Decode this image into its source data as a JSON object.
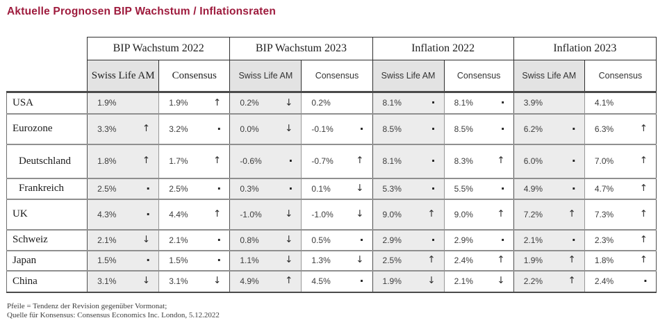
{
  "title": "Aktuelle Prognosen BIP Wachstum / Inflationsraten",
  "colors": {
    "title_red": "#9e1b3d",
    "header_gray": "#e3e3e3",
    "cell_gray": "#ececec"
  },
  "legend": {
    "up_arrow": "↑",
    "down_arrow": "↓",
    "unchanged_dot": "·"
  },
  "table": {
    "groups": [
      {
        "label": "BIP Wachstum 2022"
      },
      {
        "label": "BIP Wachstum 2023"
      },
      {
        "label": "Inflation 2022"
      },
      {
        "label": "Inflation 2023"
      }
    ],
    "subheaders": {
      "swiss_life": "Swiss Life AM",
      "consensus": "Consensus"
    },
    "rows": [
      {
        "country": "USA",
        "indent": false,
        "cells": [
          {
            "value": "1.9%",
            "trend": "none"
          },
          {
            "value": "1.9%",
            "trend": "up"
          },
          {
            "value": "0.2%",
            "trend": "down"
          },
          {
            "value": "0.2%",
            "trend": "none"
          },
          {
            "value": "8.1%",
            "trend": "dot"
          },
          {
            "value": "8.1%",
            "trend": "dot"
          },
          {
            "value": "3.9%",
            "trend": "none"
          },
          {
            "value": "4.1%",
            "trend": "none"
          }
        ]
      },
      {
        "country": "Eurozone",
        "indent": false,
        "cells": [
          {
            "value": "3.3%",
            "trend": "up"
          },
          {
            "value": "3.2%",
            "trend": "dot"
          },
          {
            "value": "0.0%",
            "trend": "down"
          },
          {
            "value": "-0.1%",
            "trend": "dot"
          },
          {
            "value": "8.5%",
            "trend": "dot"
          },
          {
            "value": "8.5%",
            "trend": "dot"
          },
          {
            "value": "6.2%",
            "trend": "dot"
          },
          {
            "value": "6.3%",
            "trend": "up"
          }
        ]
      },
      {
        "country": "Deutschland",
        "indent": true,
        "cells": [
          {
            "value": "1.8%",
            "trend": "up"
          },
          {
            "value": "1.7%",
            "trend": "up"
          },
          {
            "value": "-0.6%",
            "trend": "dot"
          },
          {
            "value": "-0.7%",
            "trend": "up"
          },
          {
            "value": "8.1%",
            "trend": "dot"
          },
          {
            "value": "8.3%",
            "trend": "up"
          },
          {
            "value": "6.0%",
            "trend": "dot"
          },
          {
            "value": "7.0%",
            "trend": "up"
          }
        ]
      },
      {
        "country": "Frankreich",
        "indent": true,
        "cells": [
          {
            "value": "2.5%",
            "trend": "dot"
          },
          {
            "value": "2.5%",
            "trend": "dot"
          },
          {
            "value": "0.3%",
            "trend": "dot"
          },
          {
            "value": "0.1%",
            "trend": "down"
          },
          {
            "value": "5.3%",
            "trend": "dot"
          },
          {
            "value": "5.5%",
            "trend": "dot"
          },
          {
            "value": "4.9%",
            "trend": "dot"
          },
          {
            "value": "4.7%",
            "trend": "up"
          }
        ]
      },
      {
        "country": "UK",
        "indent": false,
        "cells": [
          {
            "value": "4.3%",
            "trend": "dot"
          },
          {
            "value": "4.4%",
            "trend": "up"
          },
          {
            "value": "-1.0%",
            "trend": "down"
          },
          {
            "value": "-1.0%",
            "trend": "down"
          },
          {
            "value": "9.0%",
            "trend": "up"
          },
          {
            "value": "9.0%",
            "trend": "up"
          },
          {
            "value": "7.2%",
            "trend": "up"
          },
          {
            "value": "7.3%",
            "trend": "up"
          }
        ]
      },
      {
        "country": "Schweiz",
        "indent": false,
        "cells": [
          {
            "value": "2.1%",
            "trend": "down"
          },
          {
            "value": "2.1%",
            "trend": "dot"
          },
          {
            "value": "0.8%",
            "trend": "down"
          },
          {
            "value": "0.5%",
            "trend": "dot"
          },
          {
            "value": "2.9%",
            "trend": "dot"
          },
          {
            "value": "2.9%",
            "trend": "dot"
          },
          {
            "value": "2.1%",
            "trend": "dot"
          },
          {
            "value": "2.3%",
            "trend": "up"
          }
        ]
      },
      {
        "country": "Japan",
        "indent": false,
        "cells": [
          {
            "value": "1.5%",
            "trend": "dot"
          },
          {
            "value": "1.5%",
            "trend": "dot"
          },
          {
            "value": "1.1%",
            "trend": "down"
          },
          {
            "value": "1.3%",
            "trend": "down"
          },
          {
            "value": "2.5%",
            "trend": "up"
          },
          {
            "value": "2.4%",
            "trend": "up"
          },
          {
            "value": "1.9%",
            "trend": "up"
          },
          {
            "value": "1.8%",
            "trend": "up"
          }
        ]
      },
      {
        "country": "China",
        "indent": false,
        "cells": [
          {
            "value": "3.1%",
            "trend": "down"
          },
          {
            "value": "3.1%",
            "trend": "down"
          },
          {
            "value": "4.9%",
            "trend": "up"
          },
          {
            "value": "4.5%",
            "trend": "dot"
          },
          {
            "value": "1.9%",
            "trend": "down"
          },
          {
            "value": "2.1%",
            "trend": "down"
          },
          {
            "value": "2.2%",
            "trend": "up"
          },
          {
            "value": "2.4%",
            "trend": "dot"
          }
        ]
      }
    ]
  },
  "footnotes": [
    "Pfeile = Tendenz der Revision gegenüber Vormonat;",
    "Quelle für Konsensus: Consensus Economics Inc. London, 5.12.2022"
  ]
}
